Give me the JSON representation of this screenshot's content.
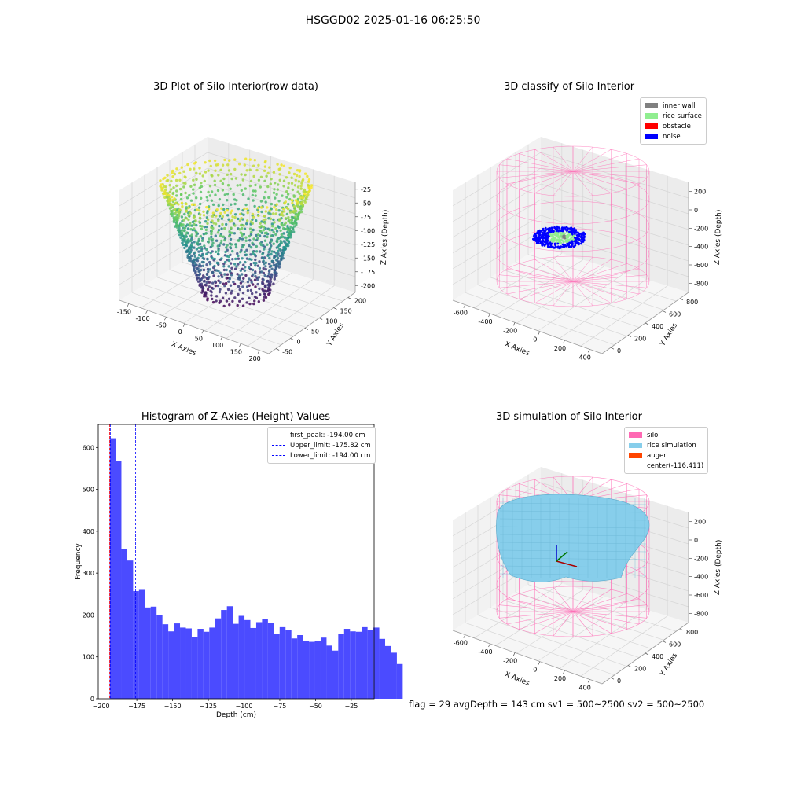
{
  "figure": {
    "title": "HSGGD02 2025-01-16 06:25:50",
    "footer": "flag = 29  avgDepth = 143 cm  sv1 = 500~2500  sv2 = 500~2500"
  },
  "colors": {
    "inner_wall": "#808080",
    "rice_surface": "#90ee90",
    "obstacle": "#ff0000",
    "noise": "#0000ff",
    "silo": "#ff69b4",
    "rice_simulation": "#87ceeb",
    "auger": "#ff4500",
    "histogram": "#4b4bff"
  },
  "chart_data": [
    {
      "type": "scatter",
      "title": "3D Plot of Silo Interior(row data)",
      "xlabel": "X Axies",
      "ylabel": "Y Axies",
      "zlabel": "Z Axies (Depth)",
      "x_ticks": [
        "-150",
        "-100",
        "-50",
        "0",
        "50",
        "100",
        "150",
        "200"
      ],
      "y_ticks": [
        "-50",
        "0",
        "50",
        "100",
        "150",
        "200"
      ],
      "z_ticks": [
        "-25",
        "-50",
        "-75",
        "-100",
        "-125",
        "-150",
        "-175",
        "-200"
      ],
      "colormap": "viridis"
    },
    {
      "type": "scatter",
      "title": "3D classify of Silo Interior",
      "xlabel": "X Axies",
      "ylabel": "Y Axies",
      "zlabel": "Z Axies (Depth)",
      "x_ticks": [
        "-600",
        "-400",
        "-200",
        "0",
        "200",
        "400"
      ],
      "y_ticks": [
        "0",
        "200",
        "400",
        "600",
        "800"
      ],
      "z_ticks": [
        "200",
        "0",
        "-200",
        "-400",
        "-600",
        "-800"
      ],
      "legend": [
        {
          "label": "inner wall",
          "color": "#808080"
        },
        {
          "label": "rice surface",
          "color": "#90ee90"
        },
        {
          "label": "obstacle",
          "color": "#ff0000"
        },
        {
          "label": "noise",
          "color": "#0000ff"
        }
      ],
      "legend_position": "top-right"
    },
    {
      "type": "bar",
      "title": "Histogram of Z-Axies (Height) Values",
      "xlabel": "Depth (cm)",
      "ylabel": "Frequency",
      "xlim": [
        -202,
        -9
      ],
      "ylim": [
        0,
        655
      ],
      "x_ticks": [
        -200,
        -175,
        -150,
        -125,
        -100,
        -75,
        -50,
        -25
      ],
      "y_ticks": [
        0,
        100,
        200,
        300,
        400,
        500,
        600
      ],
      "bins": {
        "start": -194,
        "width": 4.1,
        "values": [
          622,
          567,
          358,
          330,
          257,
          260,
          218,
          220,
          200,
          178,
          161,
          180,
          170,
          168,
          148,
          167,
          160,
          170,
          192,
          212,
          221,
          179,
          198,
          188,
          169,
          183,
          190,
          181,
          155,
          171,
          164,
          144,
          152,
          137,
          136,
          137,
          146,
          127,
          115,
          155,
          167,
          161,
          160,
          171,
          165,
          170,
          143,
          126,
          110,
          83
        ]
      },
      "reference_lines": [
        {
          "label": "first_peak: -194.00 cm",
          "x": -194.0,
          "color": "#ff0000"
        },
        {
          "label": "Upper_limit: -175.82 cm",
          "x": -175.82,
          "color": "#0000ff"
        },
        {
          "label": "Lower_limit: -194.00 cm",
          "x": -194.0,
          "color": "#0000ff"
        }
      ],
      "legend_position": "top-right"
    },
    {
      "type": "area",
      "title": "3D simulation of Silo Interior",
      "xlabel": "X Axies",
      "ylabel": "Y Axies",
      "zlabel": "Z Axies (Depth)",
      "x_ticks": [
        "-600",
        "-400",
        "-200",
        "0",
        "200",
        "400"
      ],
      "y_ticks": [
        "0",
        "200",
        "400",
        "600",
        "800"
      ],
      "z_ticks": [
        "200",
        "0",
        "-200",
        "-400",
        "-600",
        "-800"
      ],
      "legend": [
        {
          "label": "silo",
          "color": "#ff69b4"
        },
        {
          "label": "rice simulation",
          "color": "#87ceeb"
        },
        {
          "label": "auger",
          "color": "#ff4500"
        },
        {
          "label": "center(-116,411)",
          "color": ""
        }
      ],
      "legend_position": "top-right"
    }
  ]
}
